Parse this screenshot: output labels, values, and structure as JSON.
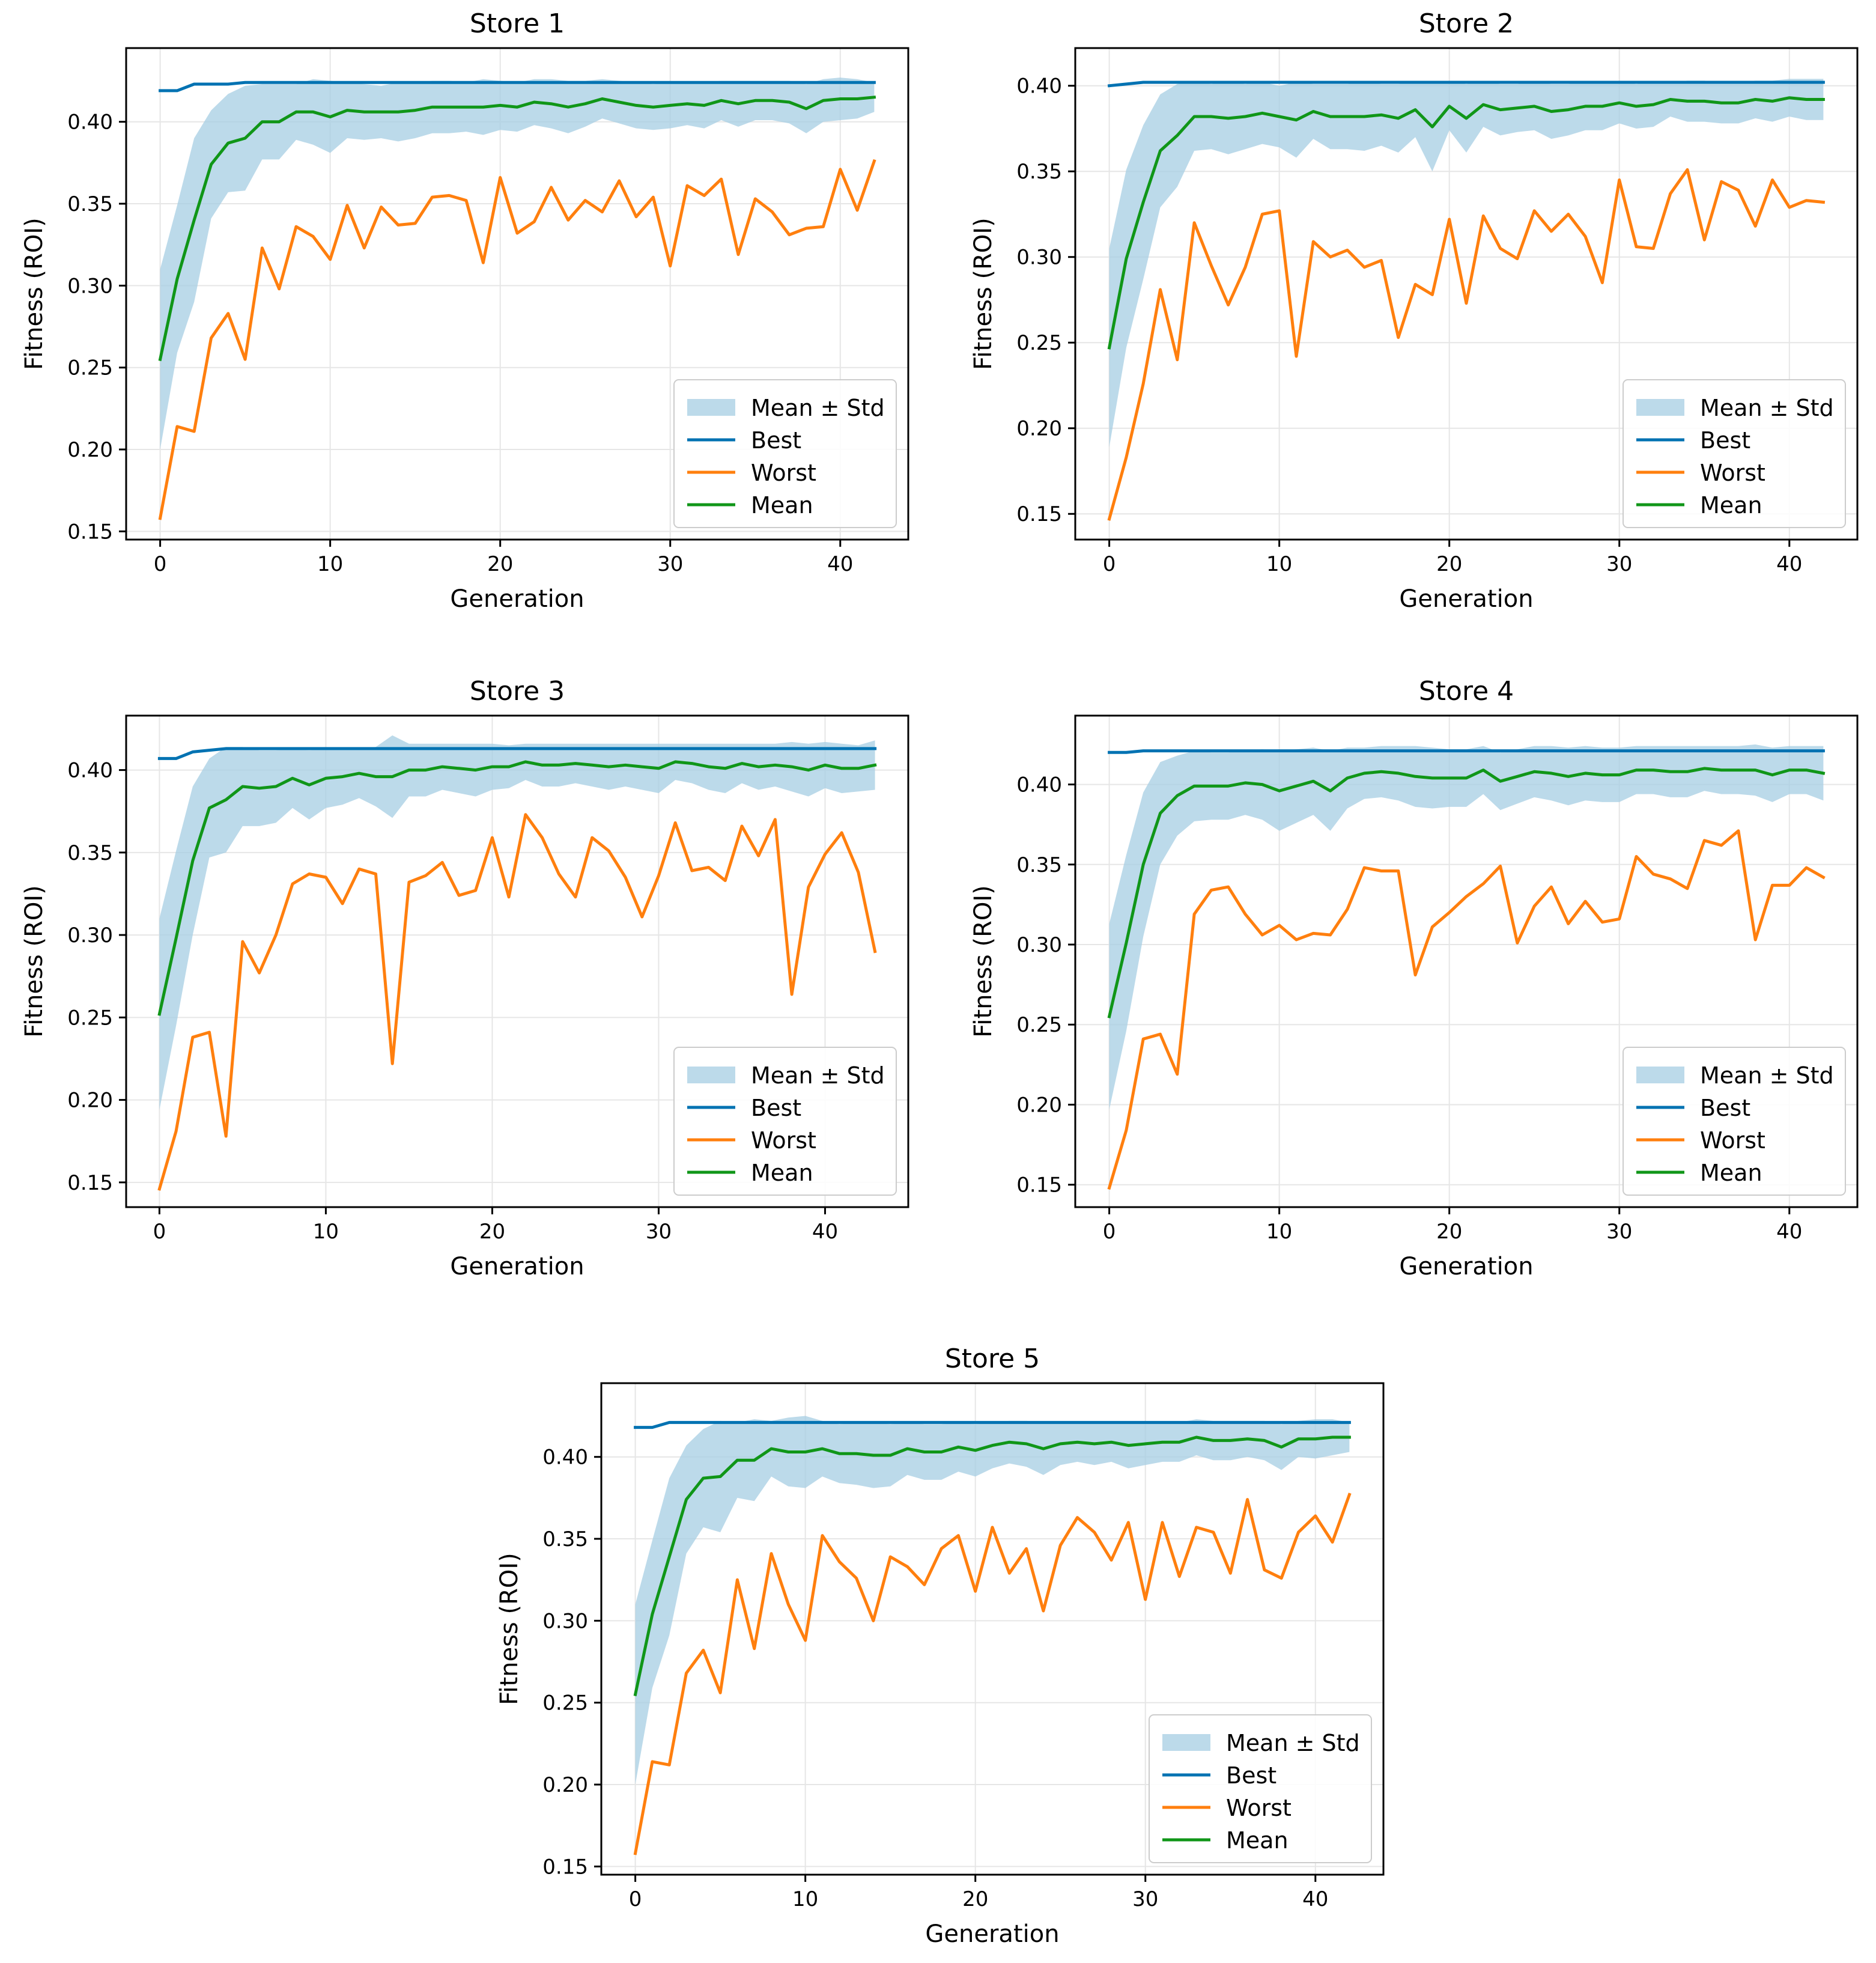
{
  "chart_data": [
    {
      "type": "line",
      "title": "Store 1",
      "xlabel": "Generation",
      "ylabel": "Fitness (ROI)",
      "xlim": [
        -2,
        44
      ],
      "ylim": [
        0.145,
        0.445
      ],
      "xticks": [
        0,
        10,
        20,
        30,
        40
      ],
      "yticks": [
        0.15,
        0.2,
        0.25,
        0.3,
        0.35,
        0.4
      ],
      "legend": [
        "Mean ± Std",
        "Best",
        "Worst",
        "Mean"
      ],
      "legend_position": "lower-right",
      "grid": true,
      "colors": {
        "band": "#a6cee3",
        "best": "#0072b2",
        "worst": "#ff7f0e",
        "mean": "#109618"
      },
      "best": [
        0.419,
        0.419,
        0.423,
        0.423,
        0.423,
        0.424,
        0.424,
        0.424,
        0.424,
        0.424,
        0.424,
        0.424,
        0.424,
        0.424,
        0.424,
        0.424,
        0.424,
        0.424,
        0.424,
        0.424,
        0.424,
        0.424,
        0.424,
        0.424,
        0.424,
        0.424,
        0.424,
        0.424,
        0.424,
        0.424,
        0.424,
        0.424,
        0.424,
        0.424,
        0.424,
        0.424,
        0.424,
        0.424,
        0.424,
        0.424,
        0.424,
        0.424,
        0.424
      ],
      "worst": [
        0.158,
        0.214,
        0.211,
        0.268,
        0.283,
        0.255,
        0.323,
        0.298,
        0.336,
        0.33,
        0.316,
        0.349,
        0.323,
        0.348,
        0.337,
        0.338,
        0.354,
        0.355,
        0.352,
        0.314,
        0.366,
        0.332,
        0.339,
        0.36,
        0.34,
        0.352,
        0.345,
        0.364,
        0.342,
        0.354,
        0.312,
        0.361,
        0.355,
        0.365,
        0.319,
        0.353,
        0.345,
        0.331,
        0.335,
        0.336,
        0.371,
        0.346,
        0.376
      ],
      "mean": [
        0.255,
        0.304,
        0.34,
        0.374,
        0.387,
        0.39,
        0.4,
        0.4,
        0.406,
        0.406,
        0.403,
        0.407,
        0.406,
        0.406,
        0.406,
        0.407,
        0.409,
        0.409,
        0.409,
        0.409,
        0.41,
        0.409,
        0.412,
        0.411,
        0.409,
        0.411,
        0.414,
        0.412,
        0.41,
        0.409,
        0.41,
        0.411,
        0.41,
        0.413,
        0.411,
        0.413,
        0.413,
        0.412,
        0.408,
        0.413,
        0.414,
        0.414,
        0.415
      ],
      "std": [
        0.055,
        0.045,
        0.05,
        0.033,
        0.03,
        0.032,
        0.023,
        0.023,
        0.017,
        0.02,
        0.022,
        0.017,
        0.017,
        0.016,
        0.018,
        0.017,
        0.016,
        0.016,
        0.015,
        0.017,
        0.015,
        0.015,
        0.014,
        0.015,
        0.016,
        0.014,
        0.012,
        0.013,
        0.014,
        0.014,
        0.014,
        0.013,
        0.014,
        0.012,
        0.014,
        0.012,
        0.012,
        0.013,
        0.015,
        0.013,
        0.013,
        0.012,
        0.009
      ]
    },
    {
      "type": "line",
      "title": "Store 2",
      "xlabel": "Generation",
      "ylabel": "Fitness (ROI)",
      "xlim": [
        -2,
        44
      ],
      "ylim": [
        0.135,
        0.422
      ],
      "xticks": [
        0,
        10,
        20,
        30,
        40
      ],
      "yticks": [
        0.15,
        0.2,
        0.25,
        0.3,
        0.35,
        0.4
      ],
      "legend": [
        "Mean ± Std",
        "Best",
        "Worst",
        "Mean"
      ],
      "legend_position": "lower-right",
      "grid": true,
      "colors": {
        "band": "#a6cee3",
        "best": "#0072b2",
        "worst": "#ff7f0e",
        "mean": "#109618"
      },
      "best": [
        0.4,
        0.401,
        0.402,
        0.402,
        0.402,
        0.402,
        0.402,
        0.402,
        0.402,
        0.402,
        0.402,
        0.402,
        0.402,
        0.402,
        0.402,
        0.402,
        0.402,
        0.402,
        0.402,
        0.402,
        0.402,
        0.402,
        0.402,
        0.402,
        0.402,
        0.402,
        0.402,
        0.402,
        0.402,
        0.402,
        0.402,
        0.402,
        0.402,
        0.402,
        0.402,
        0.402,
        0.402,
        0.402,
        0.402,
        0.402,
        0.402,
        0.402,
        0.402
      ],
      "worst": [
        0.147,
        0.183,
        0.226,
        0.281,
        0.24,
        0.32,
        0.295,
        0.272,
        0.294,
        0.325,
        0.327,
        0.242,
        0.309,
        0.3,
        0.304,
        0.294,
        0.298,
        0.253,
        0.284,
        0.278,
        0.322,
        0.273,
        0.324,
        0.305,
        0.299,
        0.327,
        0.315,
        0.325,
        0.312,
        0.285,
        0.345,
        0.306,
        0.305,
        0.337,
        0.351,
        0.31,
        0.344,
        0.339,
        0.318,
        0.345,
        0.329,
        0.333,
        0.332
      ],
      "mean": [
        0.247,
        0.299,
        0.332,
        0.362,
        0.371,
        0.382,
        0.382,
        0.381,
        0.382,
        0.384,
        0.382,
        0.38,
        0.385,
        0.382,
        0.382,
        0.382,
        0.383,
        0.381,
        0.386,
        0.376,
        0.388,
        0.381,
        0.389,
        0.386,
        0.387,
        0.388,
        0.385,
        0.386,
        0.388,
        0.388,
        0.39,
        0.388,
        0.389,
        0.392,
        0.391,
        0.391,
        0.39,
        0.39,
        0.392,
        0.391,
        0.393,
        0.392,
        0.392
      ],
      "std": [
        0.058,
        0.052,
        0.045,
        0.033,
        0.03,
        0.02,
        0.019,
        0.021,
        0.019,
        0.018,
        0.018,
        0.022,
        0.016,
        0.019,
        0.019,
        0.02,
        0.018,
        0.02,
        0.016,
        0.026,
        0.014,
        0.02,
        0.013,
        0.015,
        0.014,
        0.014,
        0.016,
        0.015,
        0.014,
        0.014,
        0.012,
        0.013,
        0.013,
        0.01,
        0.012,
        0.012,
        0.012,
        0.012,
        0.011,
        0.012,
        0.011,
        0.012,
        0.012
      ]
    },
    {
      "type": "line",
      "title": "Store 3",
      "xlabel": "Generation",
      "ylabel": "Fitness (ROI)",
      "xlim": [
        -2,
        45
      ],
      "ylim": [
        0.135,
        0.433
      ],
      "xticks": [
        0,
        10,
        20,
        30,
        40
      ],
      "yticks": [
        0.15,
        0.2,
        0.25,
        0.3,
        0.35,
        0.4
      ],
      "legend": [
        "Mean ± Std",
        "Best",
        "Worst",
        "Mean"
      ],
      "legend_position": "lower-right",
      "grid": true,
      "colors": {
        "band": "#a6cee3",
        "best": "#0072b2",
        "worst": "#ff7f0e",
        "mean": "#109618"
      },
      "best": [
        0.407,
        0.407,
        0.411,
        0.412,
        0.413,
        0.413,
        0.413,
        0.413,
        0.413,
        0.413,
        0.413,
        0.413,
        0.413,
        0.413,
        0.413,
        0.413,
        0.413,
        0.413,
        0.413,
        0.413,
        0.413,
        0.413,
        0.413,
        0.413,
        0.413,
        0.413,
        0.413,
        0.413,
        0.413,
        0.413,
        0.413,
        0.413,
        0.413,
        0.413,
        0.413,
        0.413,
        0.413,
        0.413,
        0.413,
        0.413,
        0.413,
        0.413,
        0.413,
        0.413
      ],
      "worst": [
        0.146,
        0.181,
        0.238,
        0.241,
        0.178,
        0.296,
        0.277,
        0.3,
        0.331,
        0.337,
        0.335,
        0.319,
        0.34,
        0.337,
        0.222,
        0.332,
        0.336,
        0.344,
        0.324,
        0.327,
        0.359,
        0.323,
        0.373,
        0.359,
        0.337,
        0.323,
        0.359,
        0.351,
        0.335,
        0.311,
        0.336,
        0.368,
        0.339,
        0.341,
        0.333,
        0.366,
        0.348,
        0.37,
        0.264,
        0.329,
        0.349,
        0.362,
        0.338,
        0.29
      ],
      "mean": [
        0.252,
        0.298,
        0.345,
        0.377,
        0.382,
        0.39,
        0.389,
        0.39,
        0.395,
        0.391,
        0.395,
        0.396,
        0.398,
        0.396,
        0.396,
        0.4,
        0.4,
        0.402,
        0.401,
        0.4,
        0.402,
        0.402,
        0.405,
        0.403,
        0.403,
        0.404,
        0.403,
        0.402,
        0.403,
        0.402,
        0.401,
        0.405,
        0.404,
        0.402,
        0.401,
        0.404,
        0.402,
        0.403,
        0.402,
        0.4,
        0.403,
        0.401,
        0.401,
        0.403
      ],
      "std": [
        0.058,
        0.053,
        0.045,
        0.03,
        0.032,
        0.024,
        0.023,
        0.022,
        0.018,
        0.021,
        0.018,
        0.017,
        0.015,
        0.018,
        0.025,
        0.016,
        0.016,
        0.014,
        0.015,
        0.016,
        0.014,
        0.013,
        0.011,
        0.013,
        0.013,
        0.012,
        0.013,
        0.014,
        0.013,
        0.014,
        0.015,
        0.011,
        0.012,
        0.014,
        0.015,
        0.012,
        0.014,
        0.013,
        0.015,
        0.016,
        0.014,
        0.015,
        0.014,
        0.015
      ]
    },
    {
      "type": "line",
      "title": "Store 4",
      "xlabel": "Generation",
      "ylabel": "Fitness (ROI)",
      "xlim": [
        -2,
        44
      ],
      "ylim": [
        0.136,
        0.443
      ],
      "xticks": [
        0,
        10,
        20,
        30,
        40
      ],
      "yticks": [
        0.15,
        0.2,
        0.25,
        0.3,
        0.35,
        0.4
      ],
      "legend": [
        "Mean ± Std",
        "Best",
        "Worst",
        "Mean"
      ],
      "legend_position": "lower-right",
      "grid": true,
      "colors": {
        "band": "#a6cee3",
        "best": "#0072b2",
        "worst": "#ff7f0e",
        "mean": "#109618"
      },
      "best": [
        0.42,
        0.42,
        0.421,
        0.421,
        0.421,
        0.421,
        0.421,
        0.421,
        0.421,
        0.421,
        0.421,
        0.421,
        0.421,
        0.421,
        0.421,
        0.421,
        0.421,
        0.421,
        0.421,
        0.421,
        0.421,
        0.421,
        0.421,
        0.421,
        0.421,
        0.421,
        0.421,
        0.421,
        0.421,
        0.421,
        0.421,
        0.421,
        0.421,
        0.421,
        0.421,
        0.421,
        0.421,
        0.421,
        0.421,
        0.421,
        0.421,
        0.421,
        0.421
      ],
      "worst": [
        0.148,
        0.184,
        0.241,
        0.244,
        0.219,
        0.319,
        0.334,
        0.336,
        0.319,
        0.306,
        0.312,
        0.303,
        0.307,
        0.306,
        0.322,
        0.348,
        0.346,
        0.346,
        0.281,
        0.311,
        0.32,
        0.33,
        0.338,
        0.349,
        0.301,
        0.324,
        0.336,
        0.313,
        0.327,
        0.314,
        0.316,
        0.355,
        0.344,
        0.341,
        0.335,
        0.365,
        0.362,
        0.371,
        0.303,
        0.337,
        0.337,
        0.348,
        0.342
      ],
      "mean": [
        0.255,
        0.301,
        0.35,
        0.382,
        0.393,
        0.399,
        0.399,
        0.399,
        0.401,
        0.4,
        0.396,
        0.399,
        0.402,
        0.396,
        0.404,
        0.407,
        0.408,
        0.407,
        0.405,
        0.404,
        0.404,
        0.404,
        0.409,
        0.402,
        0.405,
        0.408,
        0.407,
        0.405,
        0.407,
        0.406,
        0.406,
        0.409,
        0.409,
        0.408,
        0.408,
        0.41,
        0.409,
        0.409,
        0.409,
        0.406,
        0.409,
        0.409,
        0.407
      ],
      "std": [
        0.058,
        0.055,
        0.045,
        0.032,
        0.025,
        0.022,
        0.021,
        0.021,
        0.02,
        0.022,
        0.025,
        0.023,
        0.021,
        0.025,
        0.019,
        0.016,
        0.016,
        0.017,
        0.019,
        0.019,
        0.018,
        0.018,
        0.015,
        0.018,
        0.017,
        0.016,
        0.017,
        0.018,
        0.017,
        0.017,
        0.017,
        0.015,
        0.015,
        0.016,
        0.016,
        0.014,
        0.015,
        0.015,
        0.016,
        0.017,
        0.015,
        0.015,
        0.017
      ]
    },
    {
      "type": "line",
      "title": "Store 5",
      "xlabel": "Generation",
      "ylabel": "Fitness (ROI)",
      "xlim": [
        -2,
        44
      ],
      "ylim": [
        0.145,
        0.445
      ],
      "xticks": [
        0,
        10,
        20,
        30,
        40
      ],
      "yticks": [
        0.15,
        0.2,
        0.25,
        0.3,
        0.35,
        0.4
      ],
      "legend": [
        "Mean ± Std",
        "Best",
        "Worst",
        "Mean"
      ],
      "legend_position": "lower-right",
      "grid": true,
      "colors": {
        "band": "#a6cee3",
        "best": "#0072b2",
        "worst": "#ff7f0e",
        "mean": "#109618"
      },
      "best": [
        0.418,
        0.418,
        0.421,
        0.421,
        0.421,
        0.421,
        0.421,
        0.421,
        0.421,
        0.421,
        0.421,
        0.421,
        0.421,
        0.421,
        0.421,
        0.421,
        0.421,
        0.421,
        0.421,
        0.421,
        0.421,
        0.421,
        0.421,
        0.421,
        0.421,
        0.421,
        0.421,
        0.421,
        0.421,
        0.421,
        0.421,
        0.421,
        0.421,
        0.421,
        0.421,
        0.421,
        0.421,
        0.421,
        0.421,
        0.421,
        0.421,
        0.421,
        0.421
      ],
      "worst": [
        0.158,
        0.214,
        0.212,
        0.268,
        0.282,
        0.256,
        0.325,
        0.283,
        0.341,
        0.31,
        0.288,
        0.352,
        0.336,
        0.326,
        0.3,
        0.339,
        0.333,
        0.322,
        0.344,
        0.352,
        0.318,
        0.357,
        0.329,
        0.344,
        0.306,
        0.346,
        0.363,
        0.354,
        0.337,
        0.36,
        0.313,
        0.36,
        0.327,
        0.357,
        0.354,
        0.329,
        0.374,
        0.331,
        0.326,
        0.354,
        0.364,
        0.348,
        0.377
      ],
      "mean": [
        0.255,
        0.304,
        0.339,
        0.374,
        0.387,
        0.388,
        0.398,
        0.398,
        0.405,
        0.403,
        0.403,
        0.405,
        0.402,
        0.402,
        0.401,
        0.401,
        0.405,
        0.403,
        0.403,
        0.406,
        0.404,
        0.407,
        0.409,
        0.408,
        0.405,
        0.408,
        0.409,
        0.408,
        0.409,
        0.407,
        0.408,
        0.409,
        0.409,
        0.412,
        0.41,
        0.41,
        0.411,
        0.41,
        0.406,
        0.411,
        0.411,
        0.412,
        0.412
      ],
      "std": [
        0.055,
        0.045,
        0.048,
        0.033,
        0.03,
        0.034,
        0.023,
        0.025,
        0.017,
        0.021,
        0.022,
        0.017,
        0.018,
        0.019,
        0.02,
        0.019,
        0.016,
        0.017,
        0.017,
        0.015,
        0.016,
        0.014,
        0.013,
        0.014,
        0.016,
        0.013,
        0.012,
        0.013,
        0.012,
        0.014,
        0.013,
        0.012,
        0.012,
        0.011,
        0.012,
        0.012,
        0.011,
        0.012,
        0.014,
        0.011,
        0.012,
        0.011,
        0.009
      ]
    }
  ]
}
